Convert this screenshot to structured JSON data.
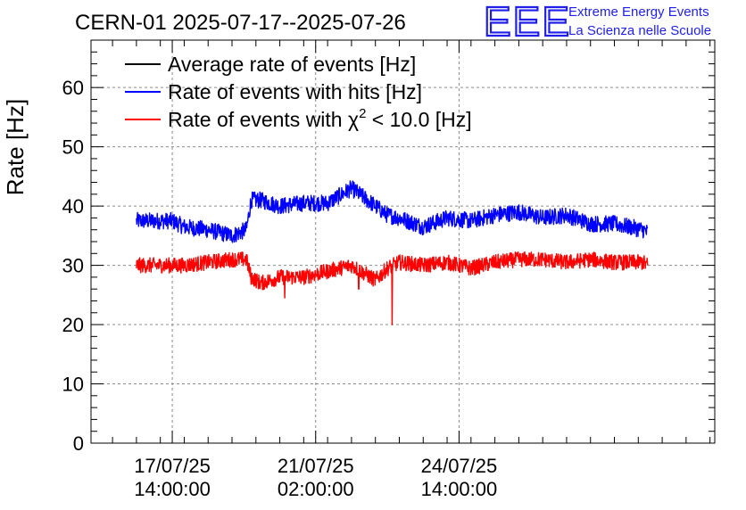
{
  "chart_data": {
    "type": "line",
    "title": "CERN-01 2025-07-17--2025-07-26",
    "brand": {
      "logo": "EEE",
      "line1": "Extreme Energy Events",
      "line2": "La Scienza nelle Scuole"
    },
    "ylabel": "Rate [Hz]",
    "xlabel": "",
    "ylim": [
      0,
      68
    ],
    "yticks": [
      "0",
      "10",
      "20",
      "30",
      "40",
      "50",
      "60"
    ],
    "xticks": [
      {
        "date": "17/07/25",
        "time": "14:00:00"
      },
      {
        "date": "21/07/25",
        "time": "02:00:00"
      },
      {
        "date": "24/07/25",
        "time": "14:00:00"
      }
    ],
    "grid": true,
    "legend_position": "top-left",
    "series": [
      {
        "name": "Average rate of events [Hz]",
        "color": "#000000",
        "values": []
      },
      {
        "name": "Rate of events with hits [Hz]",
        "color": "#0000ff",
        "x_days": [
          0,
          0.75,
          1.0,
          1.5,
          2.0,
          2.3,
          2.4,
          2.6,
          3.0,
          3.5,
          4.0,
          4.5,
          5.0,
          5.25,
          5.5,
          6.0,
          6.5,
          7.0,
          7.5,
          8.0,
          8.5,
          9.0,
          9.5,
          10.0,
          10.6,
          10.7
        ],
        "values": [
          37.5,
          37.5,
          36.5,
          36,
          35,
          36,
          41,
          41,
          40,
          40.5,
          40.5,
          43,
          40,
          38.5,
          38,
          36.5,
          38,
          37.5,
          38.5,
          39,
          38,
          38.5,
          37,
          37,
          36,
          35.5
        ],
        "noise": 1.4
      },
      {
        "name": "Rate of events with χ² < 10.0 [Hz]",
        "legend_prefix": "Rate of events with ",
        "legend_symbol": "χ",
        "legend_sup": "2",
        "legend_suffix": " < 10.0 [Hz]",
        "color": "#ff0000",
        "x_days": [
          0,
          0.75,
          1.0,
          1.5,
          2.0,
          2.3,
          2.4,
          2.6,
          3.0,
          3.5,
          4.0,
          4.5,
          5.0,
          5.25,
          5.5,
          6.0,
          6.5,
          7.0,
          7.5,
          8.0,
          8.5,
          9.0,
          9.5,
          10.0,
          10.6,
          10.7
        ],
        "values": [
          30,
          30,
          30,
          30.5,
          31,
          31,
          28,
          27,
          28,
          28,
          29,
          30,
          27.5,
          29.5,
          30.5,
          30,
          30.5,
          29.5,
          30.5,
          31,
          31,
          30.5,
          31,
          30.5,
          30.5,
          30
        ],
        "noise": 1.3,
        "dips": [
          {
            "x_day": 5.35,
            "value": 20
          },
          {
            "x_day": 4.65,
            "value": 26
          },
          {
            "x_day": 3.1,
            "value": 24.5
          }
        ]
      }
    ],
    "x_range_days": [
      -0.95,
      12.1
    ],
    "xtick_positions_days": [
      0.75,
      3.75,
      6.75
    ]
  }
}
